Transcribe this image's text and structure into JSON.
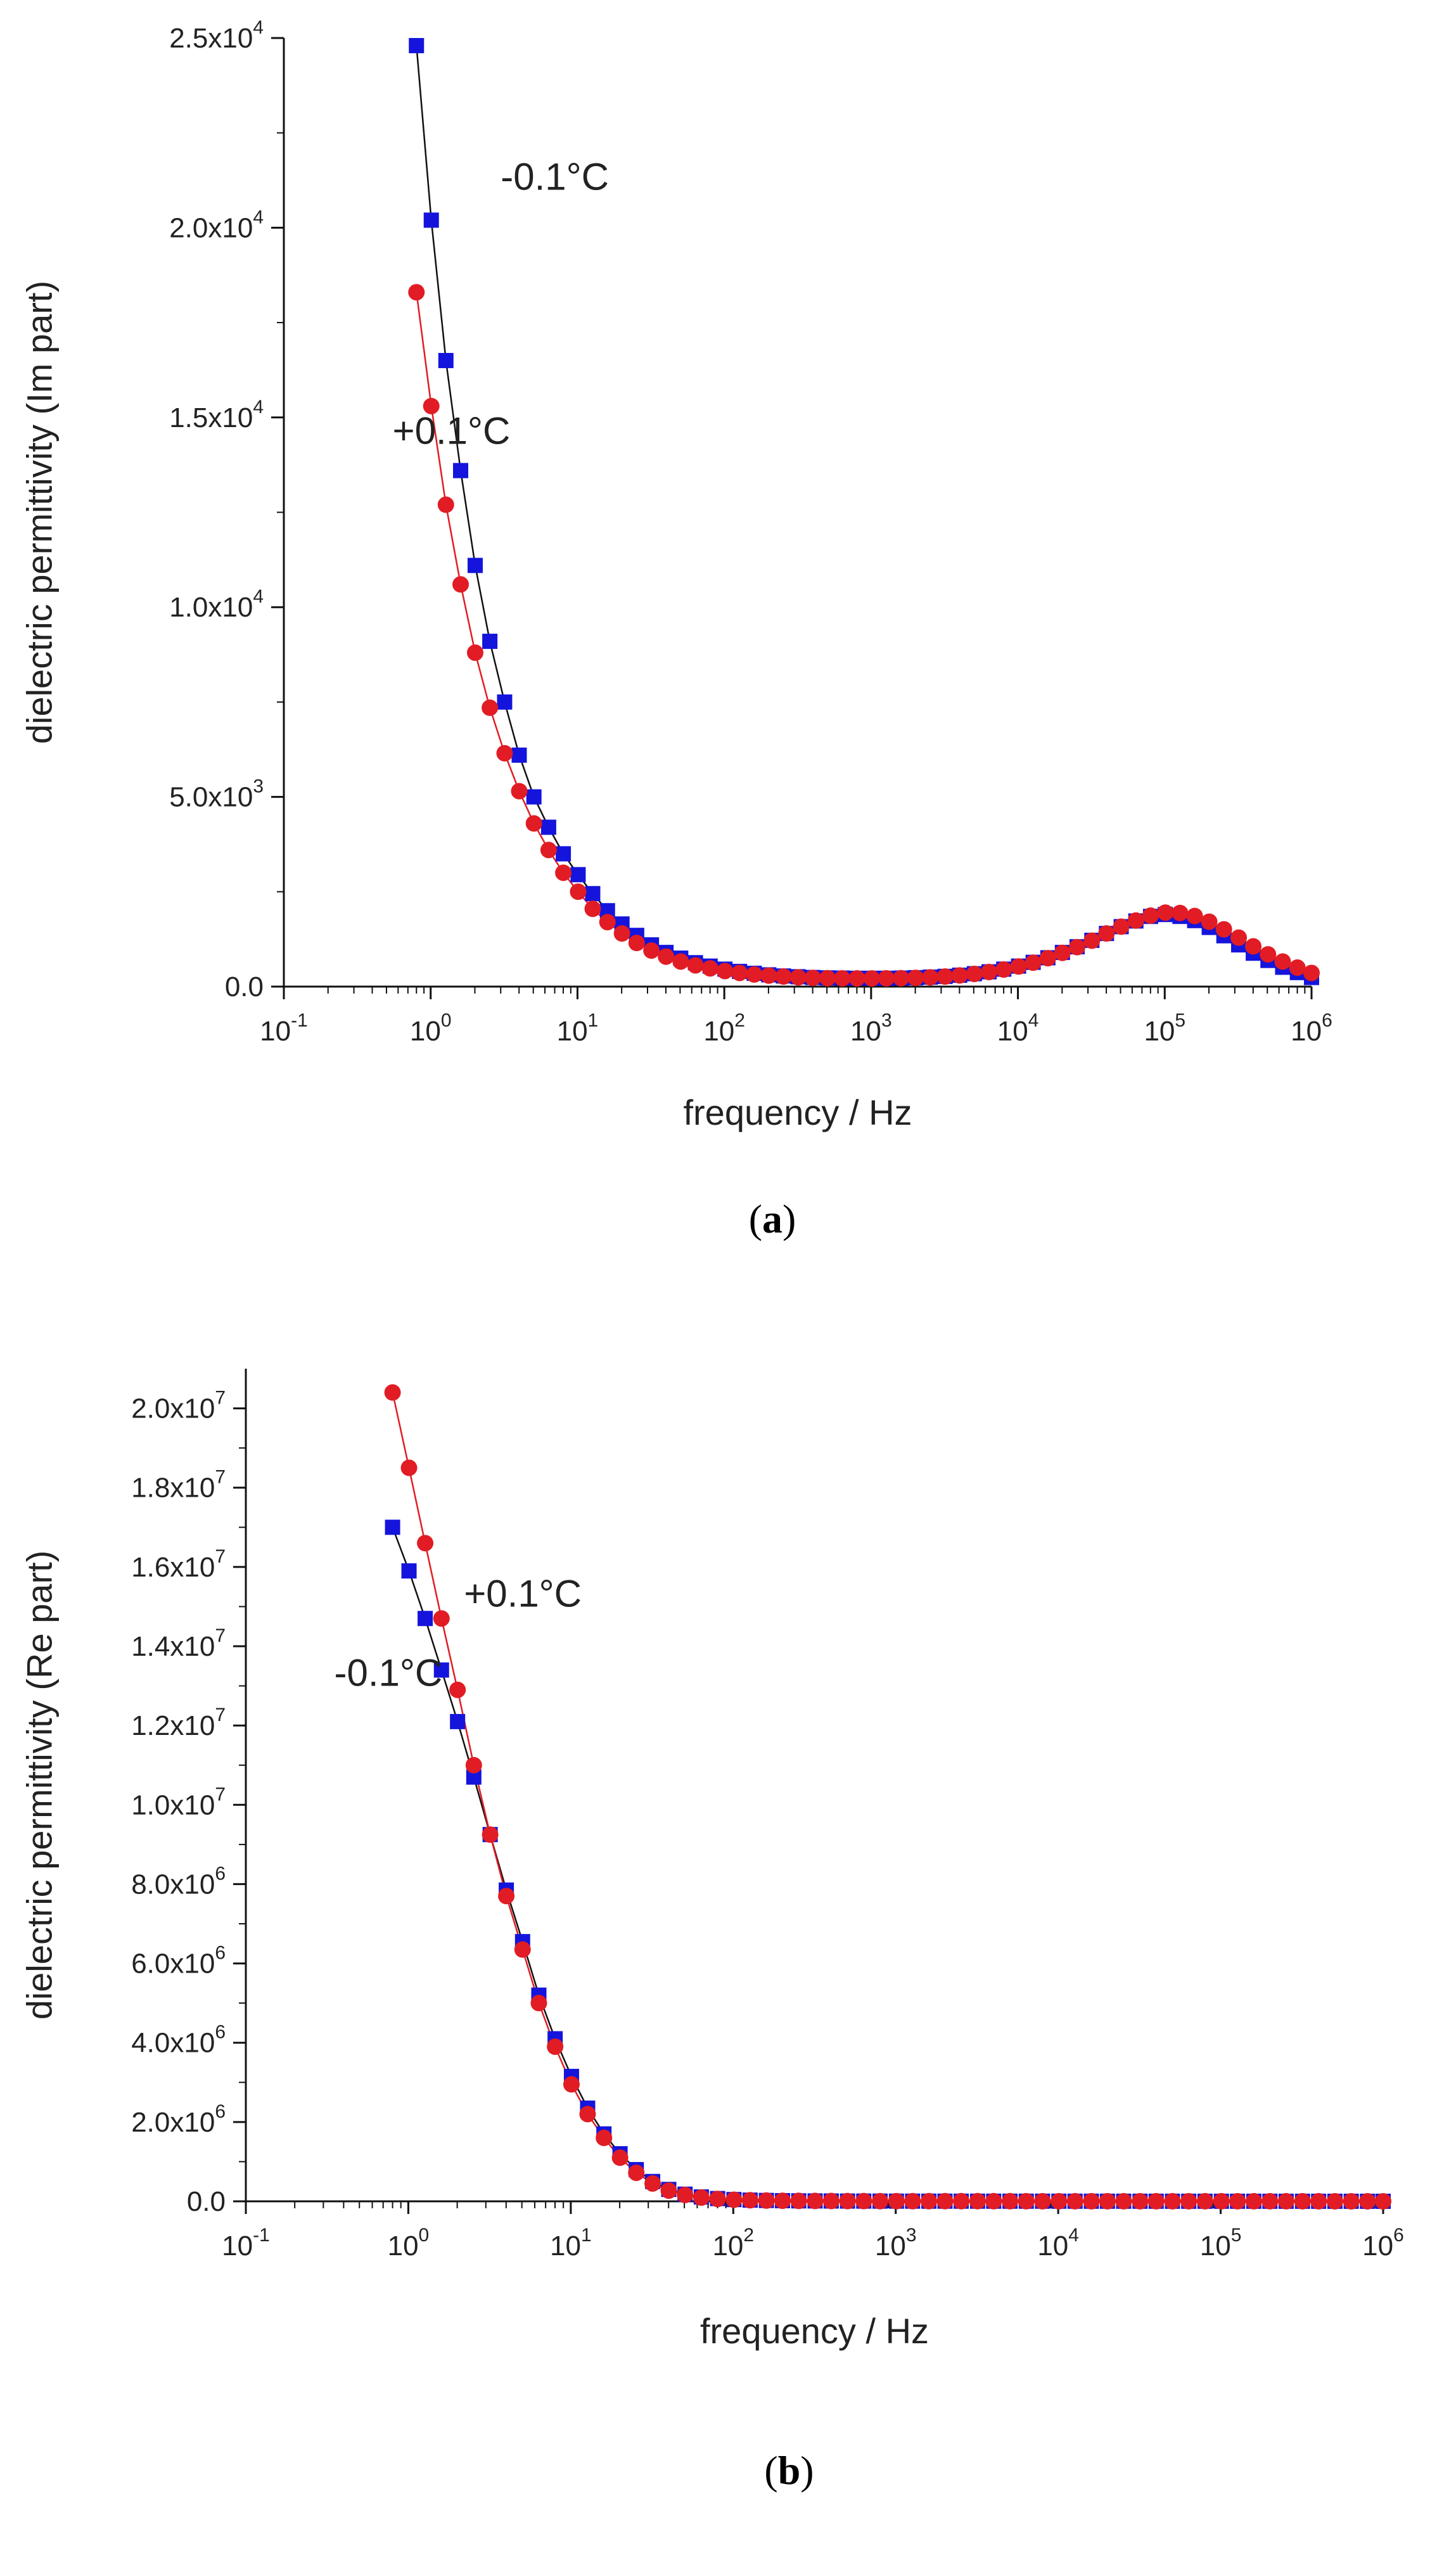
{
  "chart_data": [
    {
      "type": "scatter",
      "panel": "a",
      "caption": {
        "open": "(",
        "label": "a",
        "close": ")"
      },
      "xlabel": "frequency / Hz",
      "ylabel": "dielectric permittivity (Im part)",
      "x_scale": "log",
      "xlim": [
        0.1,
        1000000
      ],
      "ylim": [
        0,
        25000
      ],
      "x_ticks": [
        {
          "value": 0.1,
          "base": "10",
          "exp": "-1"
        },
        {
          "value": 1,
          "base": "10",
          "exp": "0"
        },
        {
          "value": 10,
          "base": "10",
          "exp": "1"
        },
        {
          "value": 100,
          "base": "10",
          "exp": "2"
        },
        {
          "value": 1000,
          "base": "10",
          "exp": "3"
        },
        {
          "value": 10000,
          "base": "10",
          "exp": "4"
        },
        {
          "value": 100000,
          "base": "10",
          "exp": "5"
        },
        {
          "value": 1000000,
          "base": "10",
          "exp": "6"
        }
      ],
      "y_ticks": [
        {
          "value": 0,
          "mant": "0.0",
          "exp": ""
        },
        {
          "value": 5000,
          "mant": "5.0x10",
          "exp": "3"
        },
        {
          "value": 10000,
          "mant": "1.0x10",
          "exp": "4"
        },
        {
          "value": 15000,
          "mant": "1.5x10",
          "exp": "4"
        },
        {
          "value": 20000,
          "mant": "2.0x10",
          "exp": "4"
        },
        {
          "value": 25000,
          "mant": "2.5x10",
          "exp": "4"
        }
      ],
      "annotations": [
        {
          "series": "neg",
          "text": "-0.1°C",
          "x": 3,
          "y": 21000
        },
        {
          "series": "pos",
          "text": "+0.1°C",
          "x": 0.55,
          "y": 14300
        }
      ],
      "series": [
        {
          "name": "-0.1°C",
          "key": "neg",
          "marker": "square",
          "color": "#1414dc",
          "line_color": "#111111",
          "x": [
            0.8,
            1.01,
            1.27,
            1.6,
            2.01,
            2.53,
            3.19,
            4.01,
            5.05,
            6.36,
            8.01,
            10.1,
            12.7,
            16,
            20.1,
            25.3,
            31.9,
            40.1,
            50.5,
            63.6,
            80.1,
            101,
            127,
            160,
            201,
            253,
            319,
            401,
            505,
            636,
            801,
            1010,
            1270,
            1600,
            2010,
            2530,
            3190,
            4010,
            5050,
            6360,
            8010,
            10100,
            12700,
            16000,
            20100,
            25300,
            31900,
            40100,
            50500,
            63600,
            80100,
            101000,
            127000,
            160000,
            201000,
            253000,
            319000,
            401000,
            505000,
            636000,
            801000,
            1000000
          ],
          "y": [
            24800,
            20200,
            16500,
            13600,
            11100,
            9100,
            7500,
            6100,
            5000,
            4200,
            3500,
            2950,
            2450,
            2000,
            1650,
            1350,
            1100,
            900,
            750,
            630,
            540,
            460,
            400,
            350,
            310,
            280,
            260,
            240,
            230,
            225,
            220,
            220,
            220,
            225,
            235,
            250,
            270,
            300,
            340,
            390,
            460,
            540,
            640,
            760,
            900,
            1050,
            1220,
            1400,
            1580,
            1730,
            1850,
            1900,
            1850,
            1740,
            1560,
            1340,
            1100,
            880,
            690,
            510,
            370,
            240
          ]
        },
        {
          "name": "+0.1°C",
          "key": "pos",
          "marker": "circle",
          "color": "#e11c24",
          "line_color": "#e11c24",
          "x": [
            0.8,
            1.01,
            1.27,
            1.6,
            2.01,
            2.53,
            3.19,
            4.01,
            5.05,
            6.36,
            8.01,
            10.1,
            12.7,
            16,
            20.1,
            25.3,
            31.9,
            40.1,
            50.5,
            63.6,
            80.1,
            101,
            127,
            160,
            201,
            253,
            319,
            401,
            505,
            636,
            801,
            1010,
            1270,
            1600,
            2010,
            2530,
            3190,
            4010,
            5050,
            6360,
            8010,
            10100,
            12700,
            16000,
            20100,
            25300,
            31900,
            40100,
            50500,
            63600,
            80100,
            101000,
            127000,
            160000,
            201000,
            253000,
            319000,
            401000,
            505000,
            636000,
            801000,
            1000000
          ],
          "y": [
            18300,
            15300,
            12700,
            10600,
            8800,
            7350,
            6150,
            5150,
            4300,
            3600,
            3000,
            2500,
            2050,
            1700,
            1400,
            1150,
            950,
            790,
            660,
            560,
            480,
            410,
            360,
            320,
            290,
            265,
            245,
            230,
            222,
            218,
            216,
            216,
            218,
            222,
            230,
            245,
            265,
            295,
            335,
            385,
            450,
            530,
            630,
            750,
            890,
            1040,
            1210,
            1400,
            1580,
            1740,
            1870,
            1950,
            1940,
            1860,
            1710,
            1510,
            1290,
            1060,
            850,
            660,
            500,
            360
          ]
        }
      ]
    },
    {
      "type": "scatter",
      "panel": "b",
      "caption": {
        "open": "(",
        "label": "b",
        "close": ")"
      },
      "xlabel": "frequency / Hz",
      "ylabel": "dielectric permittivity (Re part)",
      "x_scale": "log",
      "xlim": [
        0.1,
        1000000
      ],
      "ylim": [
        0,
        21000000
      ],
      "x_ticks": [
        {
          "value": 0.1,
          "base": "10",
          "exp": "-1"
        },
        {
          "value": 1,
          "base": "10",
          "exp": "0"
        },
        {
          "value": 10,
          "base": "10",
          "exp": "1"
        },
        {
          "value": 100,
          "base": "10",
          "exp": "2"
        },
        {
          "value": 1000,
          "base": "10",
          "exp": "3"
        },
        {
          "value": 10000,
          "base": "10",
          "exp": "4"
        },
        {
          "value": 100000,
          "base": "10",
          "exp": "5"
        },
        {
          "value": 1000000,
          "base": "10",
          "exp": "6"
        }
      ],
      "y_ticks": [
        {
          "value": 0,
          "mant": "0.0",
          "exp": ""
        },
        {
          "value": 2000000,
          "mant": "2.0x10",
          "exp": "6"
        },
        {
          "value": 4000000,
          "mant": "4.0x10",
          "exp": "6"
        },
        {
          "value": 6000000,
          "mant": "6.0x10",
          "exp": "6"
        },
        {
          "value": 8000000,
          "mant": "8.0x10",
          "exp": "6"
        },
        {
          "value": 10000000,
          "mant": "1.0x10",
          "exp": "7"
        },
        {
          "value": 12000000,
          "mant": "1.2x10",
          "exp": "7"
        },
        {
          "value": 14000000,
          "mant": "1.4x10",
          "exp": "7"
        },
        {
          "value": 16000000,
          "mant": "1.6x10",
          "exp": "7"
        },
        {
          "value": 18000000,
          "mant": "1.8x10",
          "exp": "7"
        },
        {
          "value": 20000000,
          "mant": "2.0x10",
          "exp": "7"
        }
      ],
      "annotations": [
        {
          "series": "pos",
          "text": "+0.1°C",
          "x": 2.2,
          "y": 15000000
        },
        {
          "series": "neg",
          "text": "-0.1°C",
          "x": 0.35,
          "y": 13000000
        }
      ],
      "series": [
        {
          "name": "-0.1°C",
          "key": "neg",
          "marker": "square",
          "color": "#1414dc",
          "line_color": "#111111",
          "x": [
            0.8,
            1.01,
            1.27,
            1.6,
            2.01,
            2.53,
            3.19,
            4.01,
            5.05,
            6.36,
            8.01,
            10.1,
            12.7,
            16,
            20.1,
            25.3,
            31.9,
            40.1,
            50.5,
            63.6,
            80.1,
            101,
            127,
            160,
            201,
            253,
            319,
            401,
            505,
            636,
            801,
            1010,
            1270,
            1600,
            2010,
            2530,
            3190,
            4010,
            5050,
            6360,
            8010,
            10100,
            12700,
            16000,
            20100,
            25300,
            31900,
            40100,
            50500,
            63600,
            80100,
            101000,
            127000,
            160000,
            201000,
            253000,
            319000,
            401000,
            505000,
            636000,
            801000,
            1000000
          ],
          "y": [
            17000000,
            15900000,
            14700000,
            13400000,
            12100000,
            10700000,
            9250000,
            7850000,
            6550000,
            5200000,
            4100000,
            3150000,
            2350000,
            1700000,
            1200000,
            800000,
            500000,
            300000,
            180000,
            110000,
            70000,
            45000,
            30000,
            22000,
            16000,
            12000,
            10000,
            8000,
            6500,
            5500,
            5000,
            4500,
            4200,
            4000,
            3800,
            3600,
            3400,
            3200,
            3100,
            3000,
            2900,
            2800,
            2700,
            2600,
            2500,
            2400,
            2300,
            2200,
            2100,
            2000,
            1900,
            1800,
            1700,
            1600,
            1500,
            1400,
            1300,
            1200,
            1100,
            1000,
            900,
            800
          ]
        },
        {
          "name": "+0.1°C",
          "key": "pos",
          "marker": "circle",
          "color": "#e11c24",
          "line_color": "#e11c24",
          "x": [
            0.8,
            1.01,
            1.27,
            1.6,
            2.01,
            2.53,
            3.19,
            4.01,
            5.05,
            6.36,
            8.01,
            10.1,
            12.7,
            16,
            20.1,
            25.3,
            31.9,
            40.1,
            50.5,
            63.6,
            80.1,
            101,
            127,
            160,
            201,
            253,
            319,
            401,
            505,
            636,
            801,
            1010,
            1270,
            1600,
            2010,
            2530,
            3190,
            4010,
            5050,
            6360,
            8010,
            10100,
            12700,
            16000,
            20100,
            25300,
            31900,
            40100,
            50500,
            63600,
            80100,
            101000,
            127000,
            160000,
            201000,
            253000,
            319000,
            401000,
            505000,
            636000,
            801000,
            1000000
          ],
          "y": [
            20400000,
            18500000,
            16600000,
            14700000,
            12900000,
            11000000,
            9250000,
            7700000,
            6350000,
            5000000,
            3900000,
            2950000,
            2200000,
            1600000,
            1100000,
            720000,
            450000,
            270000,
            160000,
            95000,
            60000,
            40000,
            27000,
            19000,
            14000,
            11000,
            9000,
            7500,
            6200,
            5300,
            4800,
            4400,
            4100,
            3900,
            3700,
            3500,
            3300,
            3100,
            3000,
            2900,
            2800,
            2700,
            2600,
            2500,
            2400,
            2300,
            2200,
            2100,
            2000,
            1900,
            1800,
            1700,
            1600,
            1500,
            1400,
            1300,
            1200,
            1100,
            1000,
            900,
            800,
            700
          ]
        }
      ]
    }
  ]
}
